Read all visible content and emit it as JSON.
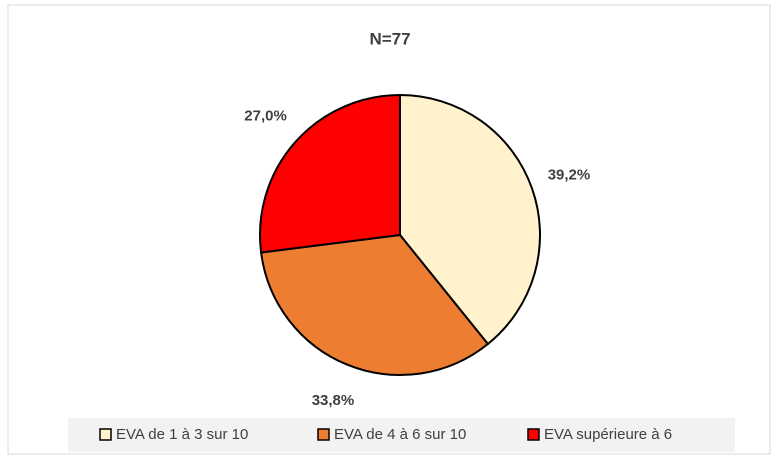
{
  "chart_data": {
    "type": "pie",
    "title": "N=77",
    "categories": [
      "EVA de 1 à 3 sur 10",
      "EVA de 4 à 6 sur 10",
      "EVA supérieure à 6"
    ],
    "values": [
      39.2,
      33.8,
      27.0
    ],
    "value_labels": [
      "39,2%",
      "33,8%",
      "27,0%"
    ],
    "colors": [
      "#FFF2CC",
      "#ED7D31",
      "#FF0000"
    ],
    "legend": "bottom"
  }
}
